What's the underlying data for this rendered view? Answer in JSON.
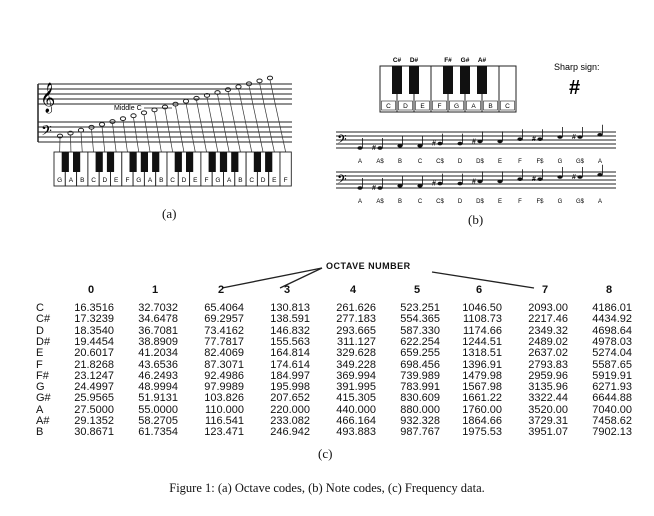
{
  "figure": {
    "caption": "Figure 1: (a) Octave codes, (b) Note codes, (c) Frequency data.",
    "panel_labels": {
      "a": "(a)",
      "b": "(b)",
      "c": "(c)"
    }
  },
  "panel_a": {
    "middle_c_label": "Middle C",
    "white_keys": [
      "G",
      "A",
      "B",
      "C",
      "D",
      "E",
      "F",
      "G",
      "A",
      "B",
      "C",
      "D",
      "E",
      "F",
      "G",
      "A",
      "B",
      "C",
      "D",
      "E",
      "F"
    ]
  },
  "panel_b": {
    "sharp_sign_label": "Sharp sign:",
    "sharp_glyph": "#",
    "black_key_labels": [
      "C#",
      "D#",
      "F#",
      "G#",
      "A#"
    ],
    "white_keys": [
      "C",
      "D",
      "E",
      "F",
      "G",
      "A",
      "B",
      "C"
    ],
    "staff_notes": [
      "A",
      "A$",
      "B",
      "C",
      "C$",
      "D",
      "D$",
      "E",
      "F",
      "F$",
      "G",
      "G$",
      "A"
    ]
  },
  "panel_c": {
    "title": "OCTAVE NUMBER",
    "octaves": [
      "0",
      "1",
      "2",
      "3",
      "4",
      "5",
      "6",
      "7",
      "8"
    ],
    "notes": [
      "C",
      "C#",
      "D",
      "D#",
      "E",
      "F",
      "F#",
      "G",
      "G#",
      "A",
      "A#",
      "B"
    ],
    "rows": [
      [
        "16.3516",
        "32.7032",
        "65.4064",
        "130.813",
        "261.626",
        "523.251",
        "1046.50",
        "2093.00",
        "4186.01"
      ],
      [
        "17.3239",
        "34.6478",
        "69.2957",
        "138.591",
        "277.183",
        "554.365",
        "1108.73",
        "2217.46",
        "4434.92"
      ],
      [
        "18.3540",
        "36.7081",
        "73.4162",
        "146.832",
        "293.665",
        "587.330",
        "1174.66",
        "2349.32",
        "4698.64"
      ],
      [
        "19.4454",
        "38.8909",
        "77.7817",
        "155.563",
        "311.127",
        "622.254",
        "1244.51",
        "2489.02",
        "4978.03"
      ],
      [
        "20.6017",
        "41.2034",
        "82.4069",
        "164.814",
        "329.628",
        "659.255",
        "1318.51",
        "2637.02",
        "5274.04"
      ],
      [
        "21.8268",
        "43.6536",
        "87.3071",
        "174.614",
        "349.228",
        "698.456",
        "1396.91",
        "2793.83",
        "5587.65"
      ],
      [
        "23.1247",
        "46.2493",
        "92.4986",
        "184.997",
        "369.994",
        "739.989",
        "1479.98",
        "2959.96",
        "5919.91"
      ],
      [
        "24.4997",
        "48.9994",
        "97.9989",
        "195.998",
        "391.995",
        "783.991",
        "1567.98",
        "3135.96",
        "6271.93"
      ],
      [
        "25.9565",
        "51.9131",
        "103.826",
        "207.652",
        "415.305",
        "830.609",
        "1661.22",
        "3322.44",
        "6644.88"
      ],
      [
        "27.5000",
        "55.0000",
        "110.000",
        "220.000",
        "440.000",
        "880.000",
        "1760.00",
        "3520.00",
        "7040.00"
      ],
      [
        "29.1352",
        "58.2705",
        "116.541",
        "233.082",
        "466.164",
        "932.328",
        "1864.66",
        "3729.31",
        "7458.62"
      ],
      [
        "30.8671",
        "61.7354",
        "123.471",
        "246.942",
        "493.883",
        "987.767",
        "1975.53",
        "3951.07",
        "7902.13"
      ]
    ]
  }
}
